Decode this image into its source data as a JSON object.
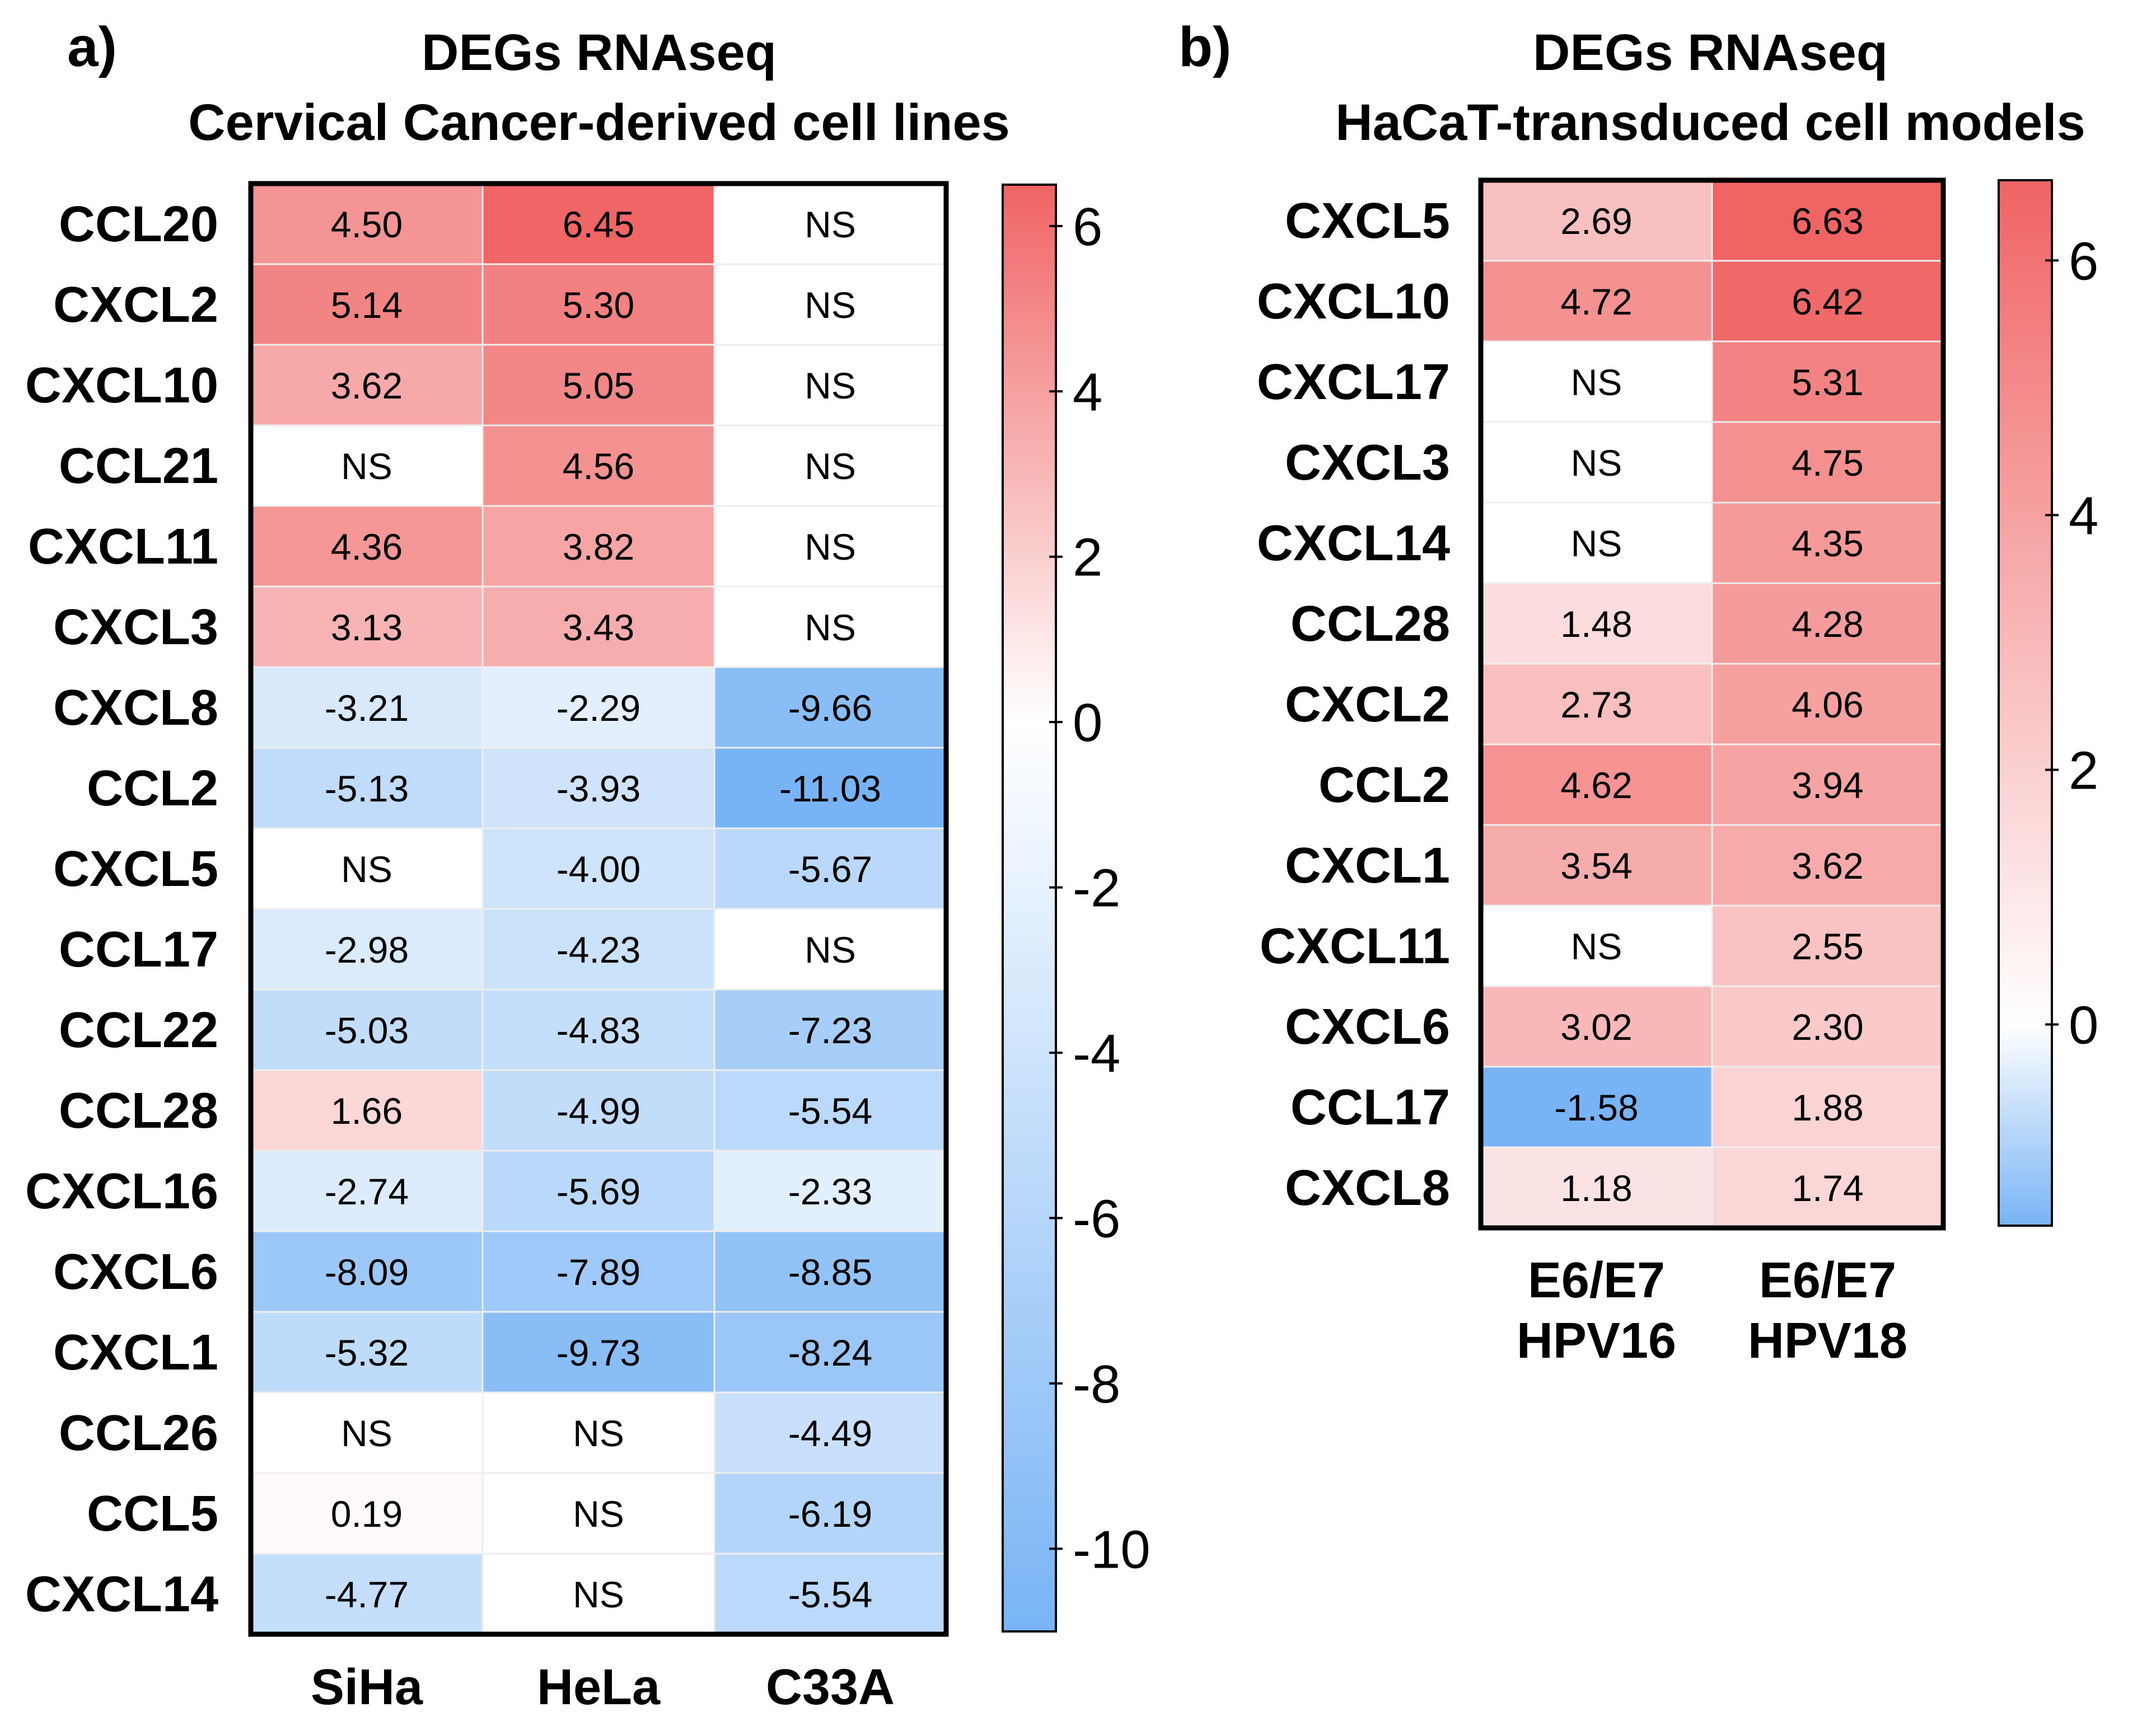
{
  "chart_data": [
    {
      "type": "heatmap",
      "panel": "a)",
      "title_line1": "DEGs RNAseq",
      "title_line2": "Cervical Cancer-derived cell lines",
      "rows": [
        "CCL20",
        "CXCL2",
        "CXCL10",
        "CCL21",
        "CXCL11",
        "CXCL3",
        "CXCL8",
        "CCL2",
        "CXCL5",
        "CCL17",
        "CCL22",
        "CCL28",
        "CXCL16",
        "CXCL6",
        "CXCL1",
        "CCL26",
        "CCL5",
        "CXCL14"
      ],
      "columns": [
        {
          "line1": "SiHa",
          "line2": ""
        },
        {
          "line1": "HeLa",
          "line2": ""
        },
        {
          "line1": "C33A",
          "line2": ""
        }
      ],
      "values": [
        [
          "4.50",
          "6.45",
          "NS"
        ],
        [
          "5.14",
          "5.30",
          "NS"
        ],
        [
          "3.62",
          "5.05",
          "NS"
        ],
        [
          "NS",
          "4.56",
          "NS"
        ],
        [
          "4.36",
          "3.82",
          "NS"
        ],
        [
          "3.13",
          "3.43",
          "NS"
        ],
        [
          "-3.21",
          "-2.29",
          "-9.66"
        ],
        [
          "-5.13",
          "-3.93",
          "-11.03"
        ],
        [
          "NS",
          "-4.00",
          "-5.67"
        ],
        [
          "-2.98",
          "-4.23",
          "NS"
        ],
        [
          "-5.03",
          "-4.83",
          "-7.23"
        ],
        [
          "1.66",
          "-4.99",
          "-5.54"
        ],
        [
          "-2.74",
          "-5.69",
          "-2.33"
        ],
        [
          "-8.09",
          "-7.89",
          "-8.85"
        ],
        [
          "-5.32",
          "-9.73",
          "-8.24"
        ],
        [
          "NS",
          "NS",
          "-4.49"
        ],
        [
          "0.19",
          "NS",
          "-6.19"
        ],
        [
          "-4.77",
          "NS",
          "-5.54"
        ]
      ],
      "colorbar": {
        "min": -11,
        "max": 6.5,
        "ticks": [
          6,
          4,
          2,
          0,
          -2,
          -4,
          -6,
          -8,
          -10
        ],
        "tick_labels": [
          "6",
          "4",
          "2",
          "0",
          "-2",
          "-4",
          "-6",
          "-8",
          "-10"
        ]
      }
    },
    {
      "type": "heatmap",
      "panel": "b)",
      "title_line1": "DEGs RNAseq",
      "title_line2": "HaCaT-transduced cell models",
      "rows": [
        "CXCL5",
        "CXCL10",
        "CXCL17",
        "CXCL3",
        "CXCL14",
        "CCL28",
        "CXCL2",
        "CCL2",
        "CXCL1",
        "CXCL11",
        "CXCL6",
        "CCL17",
        "CXCL8"
      ],
      "columns": [
        {
          "line1": "E6/E7",
          "line2": "HPV16"
        },
        {
          "line1": "E6/E7",
          "line2": "HPV18"
        }
      ],
      "values": [
        [
          "2.69",
          "6.63"
        ],
        [
          "4.72",
          "6.42"
        ],
        [
          "NS",
          "5.31"
        ],
        [
          "NS",
          "4.75"
        ],
        [
          "NS",
          "4.35"
        ],
        [
          "1.48",
          "4.28"
        ],
        [
          "2.73",
          "4.06"
        ],
        [
          "4.62",
          "3.94"
        ],
        [
          "3.54",
          "3.62"
        ],
        [
          "NS",
          "2.55"
        ],
        [
          "3.02",
          "2.30"
        ],
        [
          "-1.58",
          "1.88"
        ],
        [
          "1.18",
          "1.74"
        ]
      ],
      "colorbar": {
        "min": -1.58,
        "max": 6.63,
        "ticks": [
          6,
          4,
          2,
          0
        ],
        "tick_labels": [
          "6",
          "4",
          "2",
          "0"
        ]
      }
    }
  ],
  "colors": {
    "positive": "#f06464",
    "negative": "#78b4f5",
    "neutral": "#ffffff",
    "border": "#000000",
    "grid": "#eeeeee"
  }
}
